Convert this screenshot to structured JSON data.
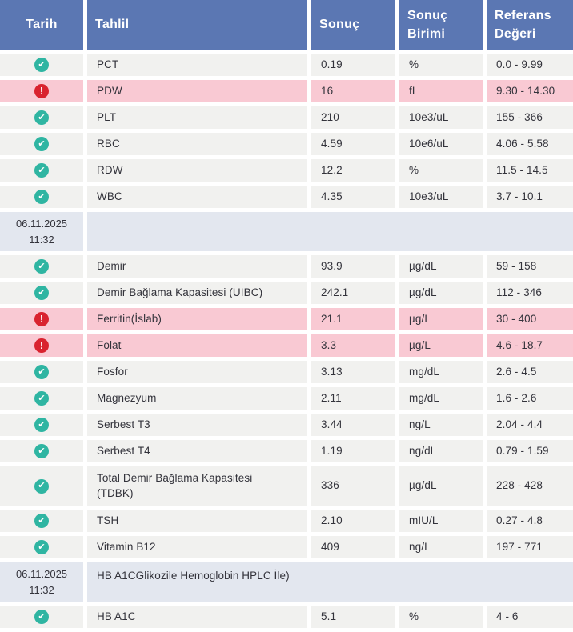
{
  "header": {
    "tarih": "Tarih",
    "tahlil": "Tahlil",
    "sonuc": "Sonuç",
    "sonuc_birimi": "Sonuç Birimi",
    "referans_degeri": "Referans Değeri"
  },
  "status_icons": {
    "ok": "✔",
    "alert": "!"
  },
  "colors": {
    "header_bg": "#5b77b3",
    "row_bg": "#f1f1ef",
    "alert_row_bg": "#f9c9d3",
    "date_row_bg": "#e3e7ef",
    "ok_icon": "#2fb5a2",
    "alert_icon": "#d9232f",
    "text": "#33333b",
    "header_text": "#ffffff"
  },
  "rows": [
    {
      "type": "result",
      "status": "ok",
      "test": "PCT",
      "result": "0.19",
      "unit": "%",
      "reference": "0.0 - 9.99"
    },
    {
      "type": "result",
      "status": "alert",
      "test": "PDW",
      "result": "16",
      "unit": "fL",
      "reference": "9.30 - 14.30"
    },
    {
      "type": "result",
      "status": "ok",
      "test": "PLT",
      "result": "210",
      "unit": "10e3/uL",
      "reference": "155 - 366"
    },
    {
      "type": "result",
      "status": "ok",
      "test": "RBC",
      "result": "4.59",
      "unit": "10e6/uL",
      "reference": "4.06 - 5.58"
    },
    {
      "type": "result",
      "status": "ok",
      "test": "RDW",
      "result": "12.2",
      "unit": "%",
      "reference": "11.5 - 14.5"
    },
    {
      "type": "result",
      "status": "ok",
      "test": "WBC",
      "result": "4.35",
      "unit": "10e3/uL",
      "reference": "3.7 - 10.1"
    },
    {
      "type": "date",
      "date": "06.11.2025",
      "time": "11:32",
      "label": ""
    },
    {
      "type": "result",
      "status": "ok",
      "test": "Demir",
      "result": "93.9",
      "unit": "µg/dL",
      "reference": "59 - 158"
    },
    {
      "type": "result",
      "status": "ok",
      "test": "Demir Bağlama Kapasitesi (UIBC)",
      "result": "242.1",
      "unit": "µg/dL",
      "reference": "112 - 346"
    },
    {
      "type": "result",
      "status": "alert",
      "test": "Ferritin(İslab)",
      "result": "21.1",
      "unit": "µg/L",
      "reference": "30 - 400"
    },
    {
      "type": "result",
      "status": "alert",
      "test": "Folat",
      "result": "3.3",
      "unit": "µg/L",
      "reference": "4.6 - 18.7"
    },
    {
      "type": "result",
      "status": "ok",
      "test": "Fosfor",
      "result": "3.13",
      "unit": "mg/dL",
      "reference": "2.6 - 4.5"
    },
    {
      "type": "result",
      "status": "ok",
      "test": "Magnezyum",
      "result": "2.11",
      "unit": "mg/dL",
      "reference": "1.6 - 2.6"
    },
    {
      "type": "result",
      "status": "ok",
      "test": "Serbest T3",
      "result": "3.44",
      "unit": "ng/L",
      "reference": "2.04 - 4.4"
    },
    {
      "type": "result",
      "status": "ok",
      "test": "Serbest T4",
      "result": "1.19",
      "unit": "ng/dL",
      "reference": "0.79 - 1.59"
    },
    {
      "type": "result",
      "status": "ok",
      "test": "Total Demir Bağlama Kapasitesi (TDBK)",
      "result": "336",
      "unit": "µg/dL",
      "reference": "228 - 428",
      "tall": true
    },
    {
      "type": "result",
      "status": "ok",
      "test": "TSH",
      "result": "2.10",
      "unit": "mIU/L",
      "reference": "0.27 - 4.8"
    },
    {
      "type": "result",
      "status": "ok",
      "test": "Vitamin B12",
      "result": "409",
      "unit": "ng/L",
      "reference": "197 - 771"
    },
    {
      "type": "date",
      "date": "06.11.2025",
      "time": "11:32",
      "label": "HB A1CGlikozile Hemoglobin HPLC İle)"
    },
    {
      "type": "result",
      "status": "ok",
      "test": "HB A1C",
      "result": "5.1",
      "unit": "%",
      "reference": "4 - 6"
    }
  ]
}
